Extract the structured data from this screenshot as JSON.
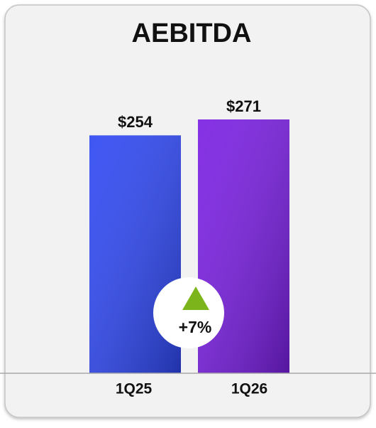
{
  "chart_data": {
    "type": "bar",
    "title": "AEBITDA",
    "categories": [
      "1Q25",
      "1Q26"
    ],
    "values": [
      254,
      271
    ],
    "value_labels": [
      "$254",
      "$271"
    ],
    "colors": [
      "#2f48f2",
      "#7a1fe2"
    ],
    "annotation": "+7%"
  }
}
